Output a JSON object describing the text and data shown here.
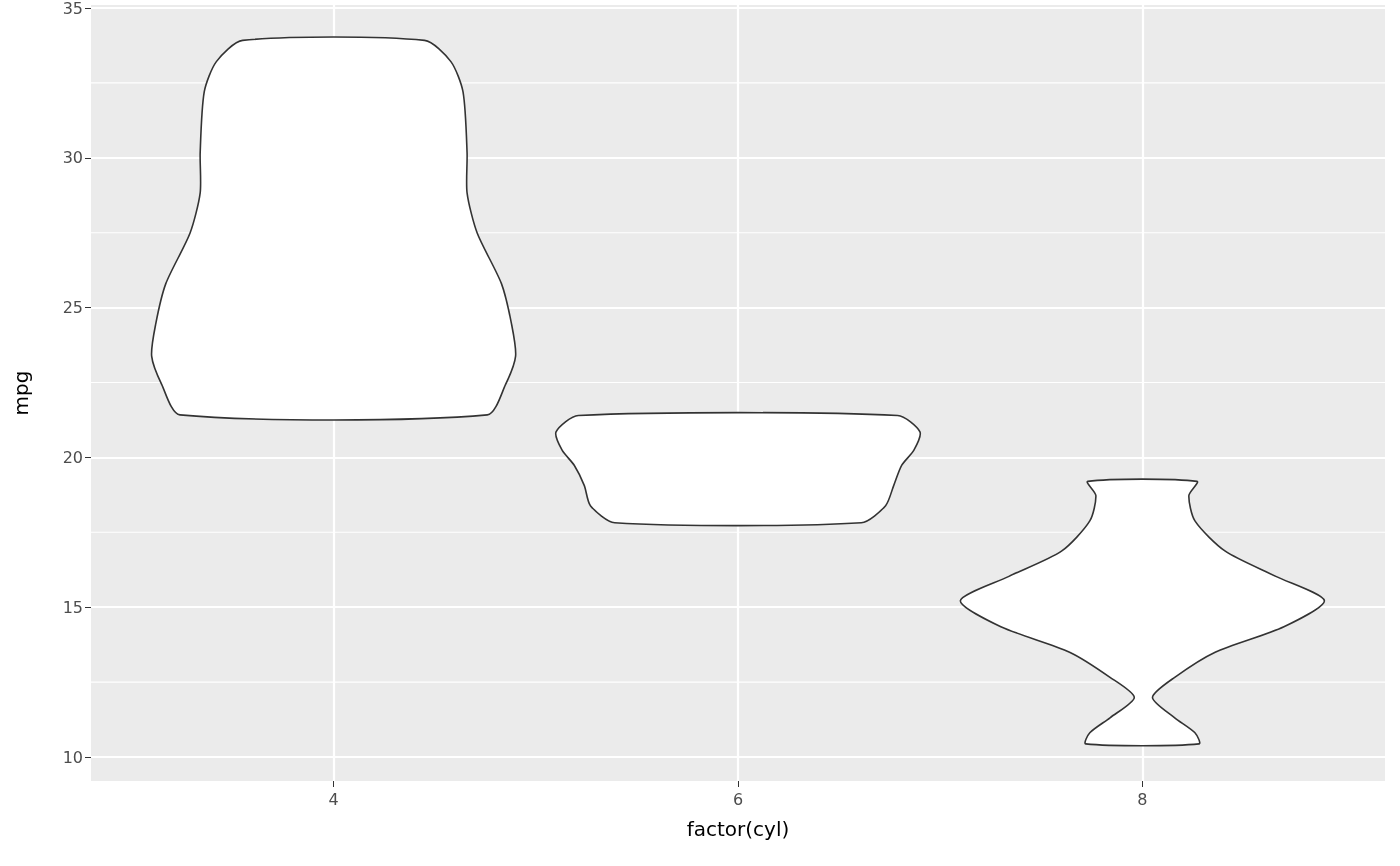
{
  "chart_data": {
    "type": "area",
    "xlabel": "factor(cyl)",
    "ylabel": "mpg",
    "xlim": [
      2.8,
      9.2
    ],
    "xticks": [
      4,
      6,
      8
    ],
    "ylim": [
      9.2,
      35.1
    ],
    "yticks": [
      10,
      15,
      20,
      25,
      30,
      35
    ],
    "grid": true,
    "series": [
      {
        "color": "#ffffff",
        "x": [
          3.55,
          3.42,
          3.36,
          3.34,
          3.34,
          3.29,
          3.17,
          3.12,
          3.1,
          3.15,
          3.24,
          4.76,
          4.85,
          4.9,
          4.88,
          4.83,
          4.71,
          4.66,
          4.66,
          4.64,
          4.58,
          4.45
        ],
        "values": [
          33.92,
          33.21,
          32.2,
          30.18,
          28.83,
          27.49,
          25.8,
          24.45,
          23.38,
          22.43,
          21.42,
          21.42,
          22.43,
          23.38,
          24.45,
          25.8,
          27.49,
          28.83,
          30.18,
          32.2,
          33.21,
          33.92
        ]
      },
      {
        "color": "#ffffff",
        "x": [
          5.21,
          5.1,
          5.13,
          5.19,
          5.24,
          5.27,
          5.39,
          6.61,
          6.73,
          6.77,
          6.81,
          6.87,
          6.9,
          6.79
        ],
        "values": [
          21.4,
          20.85,
          20.24,
          19.74,
          19.06,
          18.39,
          17.82,
          17.82,
          18.39,
          19.06,
          19.74,
          20.24,
          20.85,
          21.4
        ]
      },
      {
        "color": "#ffffff",
        "x": [
          7.73,
          7.77,
          7.74,
          7.6,
          7.34,
          7.1,
          7.3,
          7.64,
          7.84,
          7.96,
          7.84,
          7.74,
          7.72,
          8.28,
          8.26,
          8.16,
          8.05,
          8.16,
          8.36,
          8.7,
          8.9,
          8.66,
          8.41,
          8.26,
          8.23,
          8.27
        ],
        "values": [
          19.2,
          18.73,
          17.88,
          16.87,
          16.03,
          15.22,
          14.35,
          13.5,
          12.66,
          11.99,
          11.31,
          10.81,
          10.44,
          10.44,
          10.81,
          11.31,
          11.99,
          12.66,
          13.5,
          14.35,
          15.22,
          16.03,
          16.87,
          17.88,
          18.73,
          19.2
        ]
      }
    ]
  }
}
